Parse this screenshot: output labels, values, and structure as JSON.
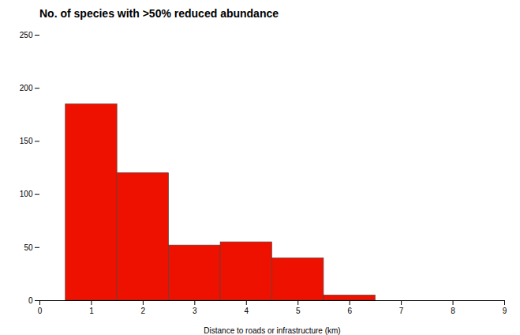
{
  "chart_data": {
    "type": "histogram",
    "title": "No. of species with >50% reduced abundance",
    "xlabel": "Distance to roads or infrastructure (km)",
    "bins": [
      0.5,
      1.5,
      2.5,
      3.5,
      4.5,
      5.5,
      6.5
    ],
    "values": [
      185,
      120,
      52,
      55,
      40,
      5
    ],
    "color": "#ee1100",
    "xlim": [
      0,
      9
    ],
    "ylim": [
      0,
      250
    ],
    "xticks": [
      0,
      1,
      2,
      3,
      4,
      5,
      6,
      7,
      8,
      9
    ],
    "yticks": [
      0,
      50,
      100,
      150,
      200,
      250
    ],
    "grid": false
  }
}
